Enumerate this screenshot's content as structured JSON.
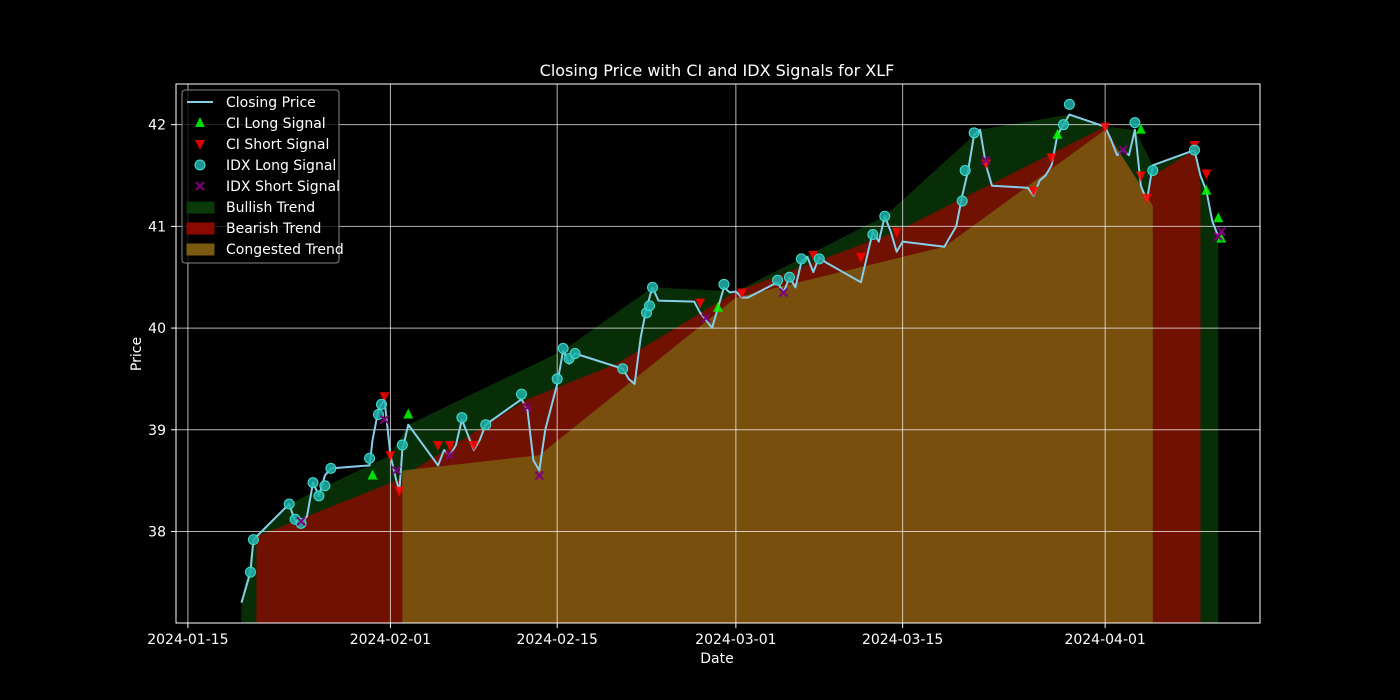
{
  "chart_data": {
    "type": "line",
    "title": "Closing Price with CI and IDX Signals for XLF",
    "xlabel": "Date",
    "ylabel": "Price",
    "ylim": [
      37.1,
      42.4
    ],
    "xlim": [
      "2024-01-14",
      "2024-04-14"
    ],
    "y_ticks": [
      38,
      39,
      40,
      41,
      42
    ],
    "x_ticks": [
      "2024-01-15",
      "2024-02-01",
      "2024-02-15",
      "2024-03-01",
      "2024-03-15",
      "2024-04-01"
    ],
    "grid": true,
    "legend_position": "top-left",
    "legend": [
      {
        "label": "Closing Price",
        "kind": "line",
        "color": "#87ceeb"
      },
      {
        "label": "CI Long Signal",
        "kind": "triangle-up",
        "color": "#00ff00"
      },
      {
        "label": "CI Short Signal",
        "kind": "triangle-down",
        "color": "#ff0000"
      },
      {
        "label": "IDX Long Signal",
        "kind": "circle",
        "color": "#20b2aa"
      },
      {
        "label": "IDX Short Signal",
        "kind": "x",
        "color": "#800080"
      },
      {
        "label": "Bullish Trend",
        "kind": "patch",
        "color": "#0a3a0a"
      },
      {
        "label": "Bearish Trend",
        "kind": "patch",
        "color": "#8b0a00"
      },
      {
        "label": "Congested Trend",
        "kind": "patch",
        "color": "#7a5a10"
      }
    ],
    "series": [
      {
        "name": "Closing Price",
        "color": "#87ceeb",
        "points": [
          [
            "2024-01-19T12:00",
            37.3
          ],
          [
            "2024-01-20T06:00",
            37.6
          ],
          [
            "2024-01-20T12:00",
            37.92
          ],
          [
            "2024-01-23T12:00",
            38.27
          ],
          [
            "2024-01-24T00:00",
            38.1
          ],
          [
            "2024-01-24T12:00",
            38.08
          ],
          [
            "2024-01-25T00:00",
            38.15
          ],
          [
            "2024-01-25T12:00",
            38.48
          ],
          [
            "2024-01-26T00:00",
            38.35
          ],
          [
            "2024-01-26T12:00",
            38.55
          ],
          [
            "2024-01-27T00:00",
            38.62
          ],
          [
            "2024-01-30T06:00",
            38.65
          ],
          [
            "2024-01-30T12:00",
            38.9
          ],
          [
            "2024-01-31T00:00",
            39.2
          ],
          [
            "2024-01-31T12:00",
            39.3
          ],
          [
            "2024-02-01T00:00",
            38.75
          ],
          [
            "2024-02-01T12:00",
            38.5
          ],
          [
            "2024-02-01T18:00",
            38.4
          ],
          [
            "2024-02-02T00:00",
            38.8
          ],
          [
            "2024-02-02T12:00",
            39.05
          ],
          [
            "2024-02-05T00:00",
            38.65
          ],
          [
            "2024-02-05T12:00",
            38.8
          ],
          [
            "2024-02-06T00:00",
            38.75
          ],
          [
            "2024-02-06T12:00",
            38.85
          ],
          [
            "2024-02-07T00:00",
            39.1
          ],
          [
            "2024-02-07T12:00",
            38.95
          ],
          [
            "2024-02-08T00:00",
            38.8
          ],
          [
            "2024-02-08T12:00",
            38.9
          ],
          [
            "2024-02-09T00:00",
            39.05
          ],
          [
            "2024-02-12T00:00",
            39.3
          ],
          [
            "2024-02-12T12:00",
            39.2
          ],
          [
            "2024-02-13T00:00",
            38.7
          ],
          [
            "2024-02-13T12:00",
            38.6
          ],
          [
            "2024-02-14T00:00",
            39.0
          ],
          [
            "2024-02-15T00:00",
            39.45
          ],
          [
            "2024-02-15T12:00",
            39.78
          ],
          [
            "2024-02-16T00:00",
            39.65
          ],
          [
            "2024-02-16T12:00",
            39.75
          ],
          [
            "2024-02-20T12:00",
            39.6
          ],
          [
            "2024-02-21T00:00",
            39.5
          ],
          [
            "2024-02-21T12:00",
            39.45
          ],
          [
            "2024-02-22T00:00",
            39.9
          ],
          [
            "2024-02-22T12:00",
            40.2
          ],
          [
            "2024-02-23T00:00",
            40.4
          ],
          [
            "2024-02-23T12:00",
            40.27
          ],
          [
            "2024-02-26T12:00",
            40.26
          ],
          [
            "2024-02-27T00:00",
            40.15
          ],
          [
            "2024-02-27T12:00",
            40.08
          ],
          [
            "2024-02-28T00:00",
            40.0
          ],
          [
            "2024-02-28T12:00",
            40.2
          ],
          [
            "2024-02-29T00:00",
            40.4
          ],
          [
            "2024-02-29T12:00",
            40.35
          ],
          [
            "2024-03-01T00:00",
            40.36
          ],
          [
            "2024-03-01T12:00",
            40.3
          ],
          [
            "2024-03-02T00:00",
            40.3
          ],
          [
            "2024-03-04T12:00",
            40.45
          ],
          [
            "2024-03-05T00:00",
            40.35
          ],
          [
            "2024-03-05T12:00",
            40.5
          ],
          [
            "2024-03-06T00:00",
            40.4
          ],
          [
            "2024-03-06T12:00",
            40.65
          ],
          [
            "2024-03-07T00:00",
            40.7
          ],
          [
            "2024-03-07T12:00",
            40.55
          ],
          [
            "2024-03-08T00:00",
            40.7
          ],
          [
            "2024-03-08T12:00",
            40.65
          ],
          [
            "2024-03-11T12:00",
            40.45
          ],
          [
            "2024-03-12T00:00",
            40.7
          ],
          [
            "2024-03-12T12:00",
            40.95
          ],
          [
            "2024-03-13T00:00",
            40.85
          ],
          [
            "2024-03-13T12:00",
            41.1
          ],
          [
            "2024-03-14T00:00",
            40.95
          ],
          [
            "2024-03-14T12:00",
            40.75
          ],
          [
            "2024-03-15T00:00",
            40.85
          ],
          [
            "2024-03-18T12:00",
            40.8
          ],
          [
            "2024-03-19T00:00",
            40.9
          ],
          [
            "2024-03-19T12:00",
            41.0
          ],
          [
            "2024-03-20T00:00",
            41.3
          ],
          [
            "2024-03-20T12:00",
            41.55
          ],
          [
            "2024-03-21T00:00",
            41.9
          ],
          [
            "2024-03-21T12:00",
            41.95
          ],
          [
            "2024-03-22T00:00",
            41.6
          ],
          [
            "2024-03-22T12:00",
            41.4
          ],
          [
            "2024-03-25T12:00",
            41.38
          ],
          [
            "2024-03-26T00:00",
            41.3
          ],
          [
            "2024-03-26T12:00",
            41.45
          ],
          [
            "2024-03-27T00:00",
            41.5
          ],
          [
            "2024-03-27T12:00",
            41.6
          ],
          [
            "2024-03-28T00:00",
            41.9
          ],
          [
            "2024-03-28T12:00",
            42.0
          ],
          [
            "2024-03-29T00:00",
            42.1
          ],
          [
            "2024-04-01T00:00",
            41.98
          ],
          [
            "2024-04-01T12:00",
            41.85
          ],
          [
            "2024-04-02T00:00",
            41.7
          ],
          [
            "2024-04-02T12:00",
            41.75
          ],
          [
            "2024-04-03T00:00",
            41.7
          ],
          [
            "2024-04-03T12:00",
            41.95
          ],
          [
            "2024-04-04T00:00",
            41.4
          ],
          [
            "2024-04-04T12:00",
            41.25
          ],
          [
            "2024-04-05T00:00",
            41.6
          ],
          [
            "2024-04-08T12:00",
            41.75
          ],
          [
            "2024-04-09T00:00",
            41.5
          ],
          [
            "2024-04-09T12:00",
            41.35
          ],
          [
            "2024-04-10T00:00",
            41.05
          ],
          [
            "2024-04-10T12:00",
            40.9
          ]
        ]
      },
      {
        "name": "CI Long Signal",
        "color": "#00ff00",
        "points": [
          [
            "2024-01-30T12:00",
            38.55
          ],
          [
            "2024-02-02T12:00",
            39.15
          ],
          [
            "2024-02-28T12:00",
            40.2
          ],
          [
            "2024-03-28T00:00",
            41.9
          ],
          [
            "2024-04-04T00:00",
            41.95
          ],
          [
            "2024-04-09T12:00",
            41.35
          ],
          [
            "2024-04-10T12:00",
            41.08
          ],
          [
            "2024-04-10T18:00",
            40.88
          ]
        ]
      },
      {
        "name": "CI Short Signal",
        "color": "#ff0000",
        "points": [
          [
            "2024-01-31T12:00",
            39.33
          ],
          [
            "2024-02-01T00:00",
            38.75
          ],
          [
            "2024-02-01T18:00",
            38.4
          ],
          [
            "2024-02-05T00:00",
            38.85
          ],
          [
            "2024-02-06T00:00",
            38.85
          ],
          [
            "2024-02-08T00:00",
            38.85
          ],
          [
            "2024-02-27T00:00",
            40.25
          ],
          [
            "2024-03-01T12:00",
            40.35
          ],
          [
            "2024-03-07T12:00",
            40.72
          ],
          [
            "2024-03-11T12:00",
            40.7
          ],
          [
            "2024-03-14T12:00",
            40.95
          ],
          [
            "2024-03-22T00:00",
            41.62
          ],
          [
            "2024-03-26T00:00",
            41.35
          ],
          [
            "2024-03-27T12:00",
            41.68
          ],
          [
            "2024-04-01T00:00",
            41.98
          ],
          [
            "2024-04-04T00:00",
            41.5
          ],
          [
            "2024-04-04T12:00",
            41.28
          ],
          [
            "2024-04-08T12:00",
            41.8
          ],
          [
            "2024-04-09T12:00",
            41.52
          ]
        ]
      },
      {
        "name": "IDX Long Signal",
        "color": "#20b2aa",
        "points": [
          [
            "2024-01-20T06:00",
            37.6
          ],
          [
            "2024-01-20T12:00",
            37.92
          ],
          [
            "2024-01-23T12:00",
            38.27
          ],
          [
            "2024-01-24T00:00",
            38.12
          ],
          [
            "2024-01-24T12:00",
            38.08
          ],
          [
            "2024-01-25T12:00",
            38.48
          ],
          [
            "2024-01-26T00:00",
            38.35
          ],
          [
            "2024-01-26T12:00",
            38.45
          ],
          [
            "2024-01-27T00:00",
            38.62
          ],
          [
            "2024-01-30T06:00",
            38.72
          ],
          [
            "2024-01-31T00:00",
            39.15
          ],
          [
            "2024-01-31T06:00",
            39.25
          ],
          [
            "2024-02-02T00:00",
            38.85
          ],
          [
            "2024-02-07T00:00",
            39.12
          ],
          [
            "2024-02-09T00:00",
            39.05
          ],
          [
            "2024-02-12T00:00",
            39.35
          ],
          [
            "2024-02-15T00:00",
            39.5
          ],
          [
            "2024-02-15T12:00",
            39.8
          ],
          [
            "2024-02-16T00:00",
            39.7
          ],
          [
            "2024-02-16T12:00",
            39.75
          ],
          [
            "2024-02-20T12:00",
            39.6
          ],
          [
            "2024-02-22T12:00",
            40.15
          ],
          [
            "2024-02-22T18:00",
            40.22
          ],
          [
            "2024-02-23T00:00",
            40.4
          ],
          [
            "2024-02-29T00:00",
            40.43
          ],
          [
            "2024-03-04T12:00",
            40.47
          ],
          [
            "2024-03-05T12:00",
            40.5
          ],
          [
            "2024-03-06T12:00",
            40.68
          ],
          [
            "2024-03-08T00:00",
            40.68
          ],
          [
            "2024-03-12T12:00",
            40.92
          ],
          [
            "2024-03-13T12:00",
            41.1
          ],
          [
            "2024-03-20T00:00",
            41.25
          ],
          [
            "2024-03-20T06:00",
            41.55
          ],
          [
            "2024-03-21T00:00",
            41.92
          ],
          [
            "2024-03-28T12:00",
            42.0
          ],
          [
            "2024-03-29T00:00",
            42.2
          ],
          [
            "2024-04-03T12:00",
            42.02
          ],
          [
            "2024-04-05T00:00",
            41.55
          ],
          [
            "2024-04-08T12:00",
            41.75
          ]
        ]
      },
      {
        "name": "IDX Short Signal",
        "color": "#800080",
        "points": [
          [
            "2024-01-24T12:00",
            38.1
          ],
          [
            "2024-01-31T12:00",
            39.1
          ],
          [
            "2024-02-01T12:00",
            38.6
          ],
          [
            "2024-02-06T00:00",
            38.75
          ],
          [
            "2024-02-12T12:00",
            39.22
          ],
          [
            "2024-02-13T12:00",
            38.55
          ],
          [
            "2024-02-27T12:00",
            40.1
          ],
          [
            "2024-03-05T00:00",
            40.35
          ],
          [
            "2024-03-22T00:00",
            41.65
          ],
          [
            "2024-04-02T12:00",
            41.75
          ],
          [
            "2024-04-10T12:00",
            40.9
          ],
          [
            "2024-04-10T18:00",
            40.95
          ]
        ]
      }
    ],
    "trend_bands": [
      {
        "trend": "Bullish",
        "color": "#0a3a0a",
        "points": [
          [
            "2024-01-19T12:00",
            37.3
          ],
          [
            "2024-01-20T12:00",
            37.92
          ],
          [
            "2024-01-23T12:00",
            38.27
          ],
          [
            "2024-02-01T00:00",
            38.75
          ],
          [
            "2024-02-02T12:00",
            39.05
          ],
          [
            "2024-02-15T12:00",
            39.78
          ],
          [
            "2024-02-23T00:00",
            40.4
          ],
          [
            "2024-03-01T00:00",
            40.36
          ],
          [
            "2024-03-13T12:00",
            41.1
          ],
          [
            "2024-03-21T12:00",
            41.95
          ],
          [
            "2024-03-29T00:00",
            42.1
          ],
          [
            "2024-04-01T00:00",
            41.98
          ],
          [
            "2024-04-03T12:00",
            41.95
          ],
          [
            "2024-04-05T00:00",
            41.6
          ],
          [
            "2024-04-08T12:00",
            41.75
          ],
          [
            "2024-04-10T00:00",
            41.05
          ],
          [
            "2024-04-10T12:00",
            40.9
          ]
        ]
      },
      {
        "trend": "Bearish",
        "color": "#8b0a00",
        "points": [
          [
            "2024-01-20T18:00",
            37.95
          ],
          [
            "2024-02-01T12:00",
            38.5
          ],
          [
            "2024-02-12T12:00",
            39.3
          ],
          [
            "2024-02-20T00:00",
            39.65
          ],
          [
            "2024-03-01T00:00",
            40.36
          ],
          [
            "2024-03-14T12:00",
            40.95
          ],
          [
            "2024-04-01T00:00",
            41.98
          ],
          [
            "2024-04-04T12:00",
            41.25
          ],
          [
            "2024-04-05T00:00",
            41.5
          ],
          [
            "2024-04-08T12:00",
            41.75
          ],
          [
            "2024-04-09T00:00",
            41.4
          ]
        ]
      },
      {
        "trend": "Congested",
        "color": "#7a5a10",
        "points": [
          [
            "2024-02-02T00:00",
            38.6
          ],
          [
            "2024-02-13T12:00",
            38.75
          ],
          [
            "2024-03-01T00:00",
            40.3
          ],
          [
            "2024-03-15T00:00",
            40.7
          ],
          [
            "2024-03-18T12:00",
            40.8
          ],
          [
            "2024-04-01T00:00",
            41.95
          ],
          [
            "2024-04-04T00:00",
            41.4
          ],
          [
            "2024-04-05T00:00",
            41.2
          ]
        ]
      }
    ]
  }
}
